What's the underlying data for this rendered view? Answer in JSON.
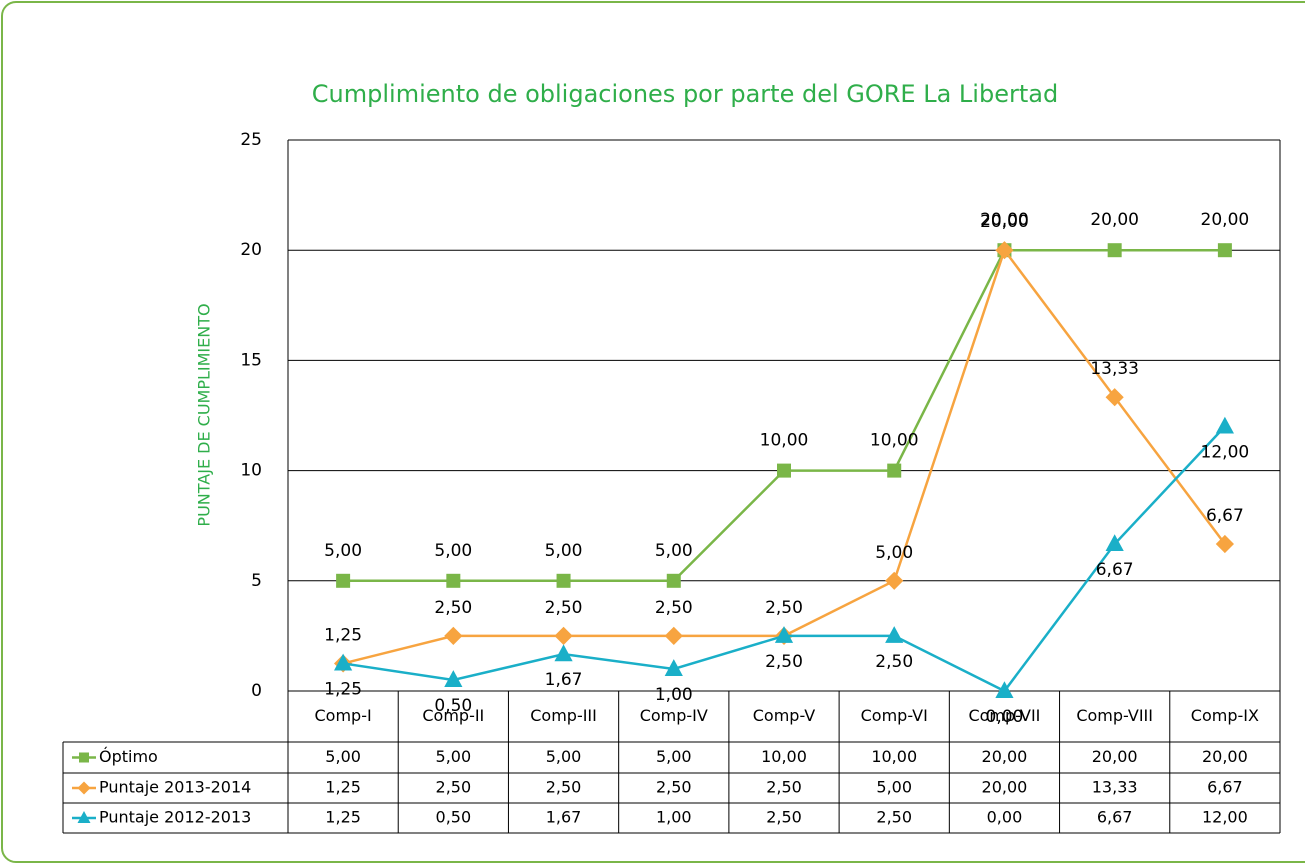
{
  "chart_data": {
    "type": "line",
    "title": "Cumplimiento de obligaciones por parte del GORE La Libertad",
    "y_label": "PUNTAJE DE CUMPLIMIENTO",
    "categories": [
      "Comp-I",
      "Comp-II",
      "Comp-III",
      "Comp-IV",
      "Comp-V",
      "Comp-VI",
      "Comp-VII",
      "Comp-VIII",
      "Comp-IX"
    ],
    "ylim": [
      0,
      25
    ],
    "yticks": [
      0,
      5,
      10,
      15,
      20,
      25
    ],
    "grid": true,
    "series": [
      {
        "name": "Óptimo",
        "color": "#7ab648",
        "marker": "square",
        "values": [
          5,
          5,
          5,
          5,
          10,
          10,
          20,
          20,
          20
        ],
        "value_labels": [
          "5,00",
          "5,00",
          "5,00",
          "5,00",
          "10,00",
          "10,00",
          "20,00",
          "20,00",
          "20,00"
        ]
      },
      {
        "name": "Puntaje 2013-2014",
        "color": "#f7a440",
        "marker": "diamond",
        "values": [
          1.25,
          2.5,
          2.5,
          2.5,
          2.5,
          5,
          20,
          13.33,
          6.67
        ],
        "value_labels": [
          "1,25",
          "2,50",
          "2,50",
          "2,50",
          "2,50",
          "5,00",
          "20,00",
          "13,33",
          "6,67"
        ]
      },
      {
        "name": "Puntaje 2012-2013",
        "color": "#1aafc8",
        "marker": "triangle",
        "values": [
          1.25,
          0.5,
          1.67,
          1,
          2.5,
          2.5,
          0,
          6.67,
          12
        ],
        "value_labels": [
          "1,25",
          "0,50",
          "1,67",
          "1,00",
          "2,50",
          "2,50",
          "0,00",
          "6,67",
          "12,00"
        ]
      }
    ]
  }
}
